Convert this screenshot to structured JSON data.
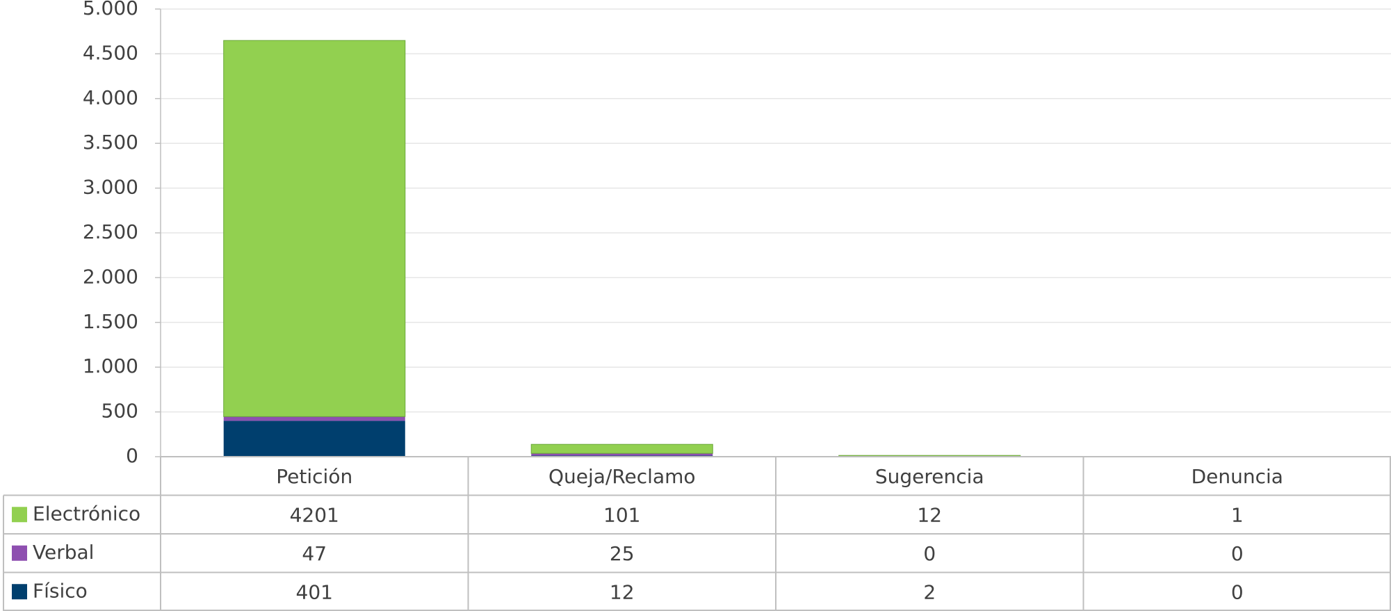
{
  "chart_data": {
    "type": "stacked_bar",
    "categories": [
      "Petición",
      "Queja/Reclamo",
      "Sugerencia",
      "Denuncia"
    ],
    "series": [
      {
        "name": "Electrónico",
        "color": "#92d050",
        "values": [
          4201,
          101,
          12,
          1
        ]
      },
      {
        "name": "Verbal",
        "color": "#8e4fb0",
        "values": [
          47,
          25,
          0,
          0
        ]
      },
      {
        "name": "Físico",
        "color": "#003f6e",
        "values": [
          401,
          12,
          2,
          0
        ]
      }
    ],
    "ylim": [
      0,
      5000
    ],
    "yticks": [
      0,
      500,
      {
        "value": 1000,
        "label": "1.000"
      },
      {
        "value": 1500,
        "label": "1.500"
      },
      {
        "value": 2000,
        "label": "2.000"
      },
      {
        "value": 2500,
        "label": "2.500"
      },
      {
        "value": 3000,
        "label": "3.000"
      },
      {
        "value": 3500,
        "label": "3.500"
      },
      {
        "value": 4000,
        "label": "4.000"
      },
      {
        "value": 4500,
        "label": "4.500"
      },
      {
        "value": 5000,
        "label": "5.000"
      }
    ],
    "grid": true
  }
}
